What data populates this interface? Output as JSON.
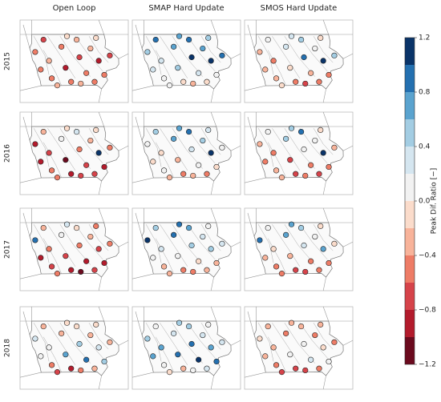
{
  "columns": [
    "Open Loop",
    "SMAP Hard Update",
    "SMOS Hard Update"
  ],
  "rows": [
    "2015",
    "2016",
    "2017",
    "2018"
  ],
  "stations": [
    {
      "lon": -96.2,
      "lat": 42.5
    },
    {
      "lon": -95.6,
      "lat": 43.2
    },
    {
      "lon": -95.2,
      "lat": 42.0
    },
    {
      "lon": -95.0,
      "lat": 41.0
    },
    {
      "lon": -94.3,
      "lat": 42.8
    },
    {
      "lon": -94.0,
      "lat": 41.6
    },
    {
      "lon": -93.6,
      "lat": 40.8
    },
    {
      "lon": -93.2,
      "lat": 43.2
    },
    {
      "lon": -93.0,
      "lat": 42.2
    },
    {
      "lon": -92.5,
      "lat": 41.3
    },
    {
      "lon": -92.2,
      "lat": 42.7
    },
    {
      "lon": -91.8,
      "lat": 43.3
    },
    {
      "lon": -91.6,
      "lat": 42.0
    },
    {
      "lon": -91.2,
      "lat": 41.2
    },
    {
      "lon": -90.8,
      "lat": 42.3
    },
    {
      "lon": -92.9,
      "lat": 40.7
    },
    {
      "lon": -95.8,
      "lat": 41.5
    },
    {
      "lon": -94.6,
      "lat": 40.6
    },
    {
      "lon": -93.9,
      "lat": 43.4
    },
    {
      "lon": -91.9,
      "lat": 40.8
    }
  ],
  "panels": [
    [
      {
        "values": [
          -0.5,
          -0.7,
          -0.3,
          -0.5,
          -0.6,
          -0.9,
          -0.5,
          -0.3,
          -0.8,
          -0.6,
          -0.4,
          -0.2,
          -0.9,
          -0.5,
          -0.7,
          -0.4,
          -0.6,
          -0.3,
          -0.1,
          -0.5
        ]
      },
      {
        "values": [
          0.5,
          0.9,
          0.3,
          0.1,
          0.7,
          0.5,
          -0.2,
          0.9,
          1.1,
          0.3,
          0.7,
          0.5,
          1.1,
          0.1,
          0.9,
          -0.3,
          0.3,
          0.1,
          0.7,
          -0.1
        ]
      },
      {
        "values": [
          -0.3,
          0.1,
          -0.5,
          -0.3,
          0.3,
          -0.1,
          -0.5,
          0.5,
          0.9,
          -0.3,
          0.1,
          -0.1,
          1.1,
          -0.5,
          0.5,
          -0.7,
          -0.3,
          -0.1,
          0.3,
          -0.5
        ]
      }
    ],
    [
      {
        "values": [
          -0.9,
          -0.3,
          -0.7,
          -0.5,
          0.1,
          -1.1,
          -0.9,
          0.3,
          -0.5,
          -0.7,
          -0.3,
          -0.1,
          1.1,
          -0.9,
          -0.5,
          -0.7,
          -0.9,
          -0.5,
          -0.1,
          -0.7
        ]
      },
      {
        "values": [
          0.1,
          0.5,
          -0.1,
          0.1,
          0.7,
          -0.3,
          -0.5,
          0.9,
          0.3,
          0.1,
          0.5,
          0.3,
          1.1,
          -0.1,
          0.1,
          -0.3,
          -0.1,
          -0.3,
          0.7,
          -0.5
        ]
      },
      {
        "values": [
          -0.3,
          0.1,
          -0.5,
          -0.3,
          0.5,
          -0.7,
          -0.7,
          0.9,
          0.1,
          -0.5,
          0.1,
          -0.1,
          1.1,
          -0.5,
          -0.3,
          -0.5,
          -0.5,
          -0.3,
          0.5,
          -0.7
        ]
      }
    ],
    [
      {
        "values": [
          0.9,
          -0.3,
          -0.5,
          -0.7,
          0.1,
          -0.7,
          -0.9,
          -0.1,
          -0.5,
          -0.9,
          -0.3,
          -0.5,
          -0.7,
          -0.9,
          -0.5,
          -1.1,
          -0.9,
          -0.5,
          0.3,
          -0.7
        ]
      },
      {
        "values": [
          1.1,
          0.5,
          0.3,
          -0.3,
          0.9,
          0.1,
          -0.5,
          0.7,
          0.5,
          -0.1,
          0.3,
          0.1,
          0.5,
          -0.3,
          0.3,
          -0.5,
          0.1,
          -0.3,
          0.9,
          -0.3
        ]
      },
      {
        "values": [
          0.9,
          0.1,
          -0.1,
          -0.5,
          0.7,
          -0.3,
          -0.7,
          0.5,
          0.3,
          -0.5,
          0.1,
          -0.1,
          0.7,
          -0.5,
          -0.1,
          -0.7,
          -0.3,
          -0.5,
          0.7,
          -0.5
        ]
      }
    ],
    [
      {
        "values": [
          0.3,
          -0.3,
          0.1,
          -0.5,
          -0.3,
          0.7,
          -0.9,
          -0.1,
          0.5,
          0.9,
          -0.3,
          -0.1,
          0.3,
          0.5,
          -0.3,
          -0.5,
          0.1,
          -0.7,
          -0.1,
          -0.3
        ]
      },
      {
        "values": [
          0.5,
          0.1,
          0.7,
          0.1,
          0.3,
          0.9,
          -0.3,
          0.5,
          0.9,
          1.1,
          0.3,
          0.1,
          0.7,
          0.9,
          0.3,
          0.1,
          0.7,
          -0.1,
          0.5,
          0.3
        ]
      },
      {
        "values": [
          -0.1,
          -0.3,
          -0.3,
          -0.5,
          -0.5,
          0.1,
          -0.7,
          -0.3,
          0.1,
          0.3,
          -0.5,
          -0.3,
          -0.1,
          0.1,
          -0.5,
          -0.7,
          -0.3,
          -0.7,
          -0.3,
          -0.5
        ]
      }
    ]
  ],
  "colorbar": {
    "label": "Peak Dif. Ratio [−]",
    "bounds": [
      -1.2,
      -1.0,
      -0.8,
      -0.6,
      -0.4,
      -0.2,
      0,
      0.2,
      0.4,
      0.6,
      0.8,
      1.0,
      1.2
    ],
    "colors": [
      "#6b0a1e",
      "#b31b2c",
      "#d6434a",
      "#ee7c66",
      "#f8b39a",
      "#fbdccb",
      "#f2f2f2",
      "#d5e6f0",
      "#a3cde3",
      "#5aa3cf",
      "#2470b0",
      "#0a3469"
    ],
    "ticks": [
      {
        "value": -1.2,
        "label": "−1.2"
      },
      {
        "value": -0.8,
        "label": "−0.8"
      },
      {
        "value": -0.4,
        "label": "−0.4"
      },
      {
        "value": 0,
        "label": "0.0"
      },
      0.4,
      0.8,
      1.2
    ]
  }
}
